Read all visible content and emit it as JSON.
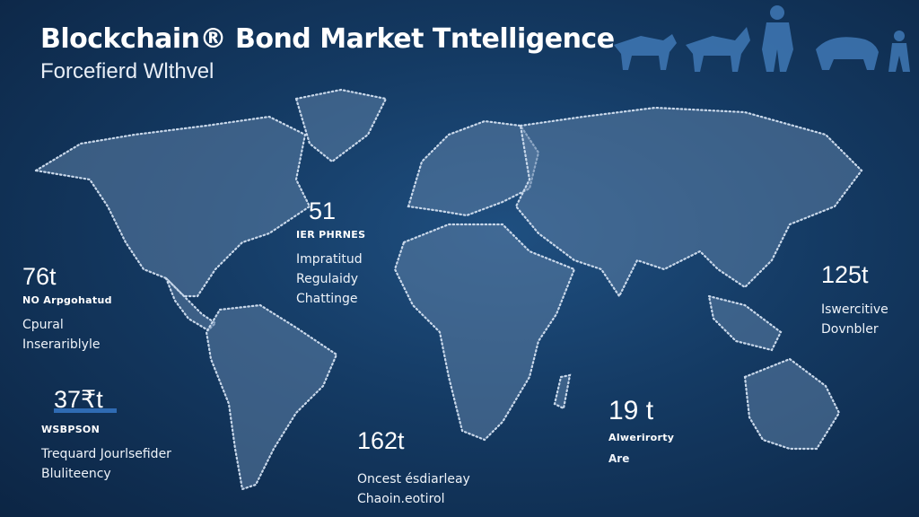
{
  "header": {
    "title": "Blockchain® Bond Market Tntelligence",
    "subtitle": "Forcefierd Wlthvel"
  },
  "colors": {
    "background": "#143a63",
    "land": "#5d7fa6",
    "accent": "#2f6bb3",
    "silhouettes": "#3f78b5"
  },
  "decoration": {
    "icon": "animal-silhouettes-icon"
  },
  "stats": [
    {
      "value": "76t",
      "tag": "NO Arpgohatud",
      "lines": [
        "Cpural",
        "Inserariblyle"
      ]
    },
    {
      "value": "37₹t",
      "tag": "WSBPSON",
      "lines": [
        "Trequard Jourlsefider",
        "Bluliteency"
      ]
    },
    {
      "value": "51",
      "tag": "IER PHRNES",
      "lines": [
        "Impratitud",
        "Regulaidy",
        "Chattinge"
      ]
    },
    {
      "value": "162t",
      "tag": "",
      "lines": [
        "Oncest ésdiarleay",
        "Chaoin.eotirol"
      ]
    },
    {
      "value": "19 t",
      "tag": "Alwerirorty",
      "lines": [
        "Are"
      ]
    },
    {
      "value": "125t",
      "tag": "",
      "lines": [
        "Iswercitive",
        "Dovnbler"
      ]
    }
  ]
}
